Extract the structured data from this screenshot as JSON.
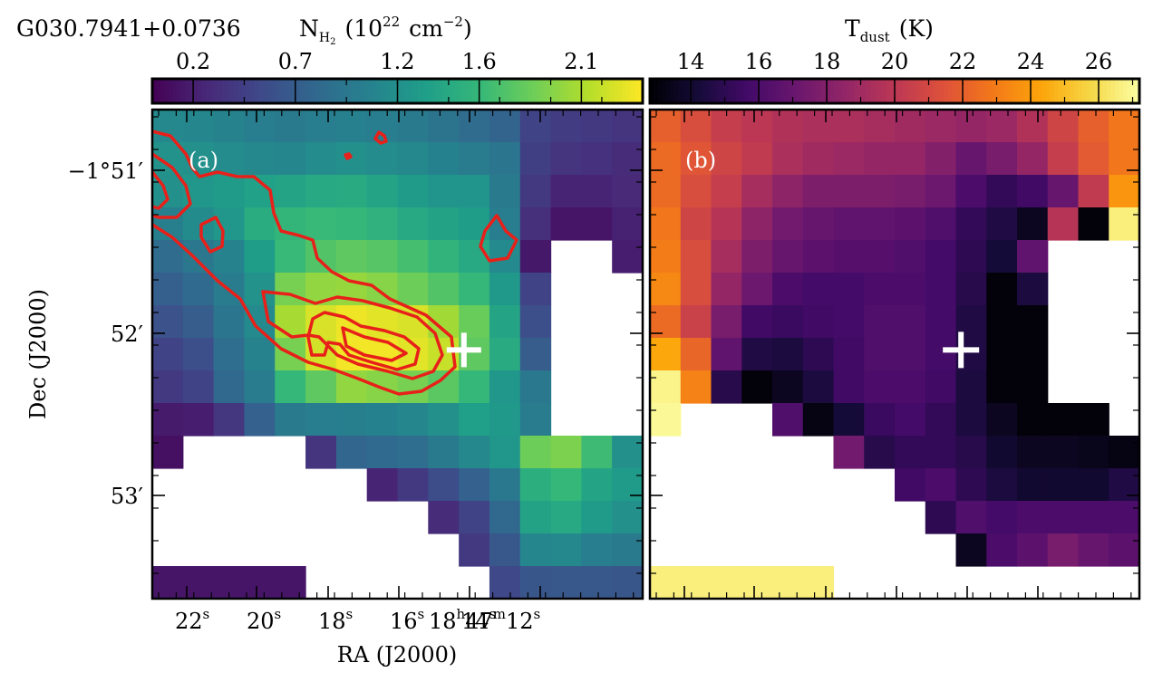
{
  "figure": {
    "source_label": "G030.7941+0.0736",
    "colorbar_left_title_main": "N",
    "colorbar_left_title_sub": "H",
    "colorbar_left_title_subsub": "2",
    "colorbar_left_title_unit": "(10",
    "colorbar_left_title_exp": "22",
    "colorbar_left_title_unit2": "cm",
    "colorbar_left_title_exp2": "−2",
    "colorbar_left_title_close": ")",
    "colorbar_right_title_main": "T",
    "colorbar_right_title_sub": "dust",
    "colorbar_right_title_unit": "(K)",
    "panel_a_label": "(a)",
    "panel_b_label": "(b)",
    "ylabel": "Dec (J2000)",
    "xlabel": "RA (J2000)",
    "y_ticks": [
      {
        "main": "−1°51′",
        "value": -1.85
      },
      {
        "main": "52′",
        "value": -1.8667
      },
      {
        "main": "53′",
        "value": -1.8833
      }
    ],
    "x_ticks": [
      {
        "sec": "22",
        "value": 22
      },
      {
        "sec": "20",
        "value": 20
      },
      {
        "sec": "18",
        "value": 18
      },
      {
        "sec": "16",
        "value": 16
      },
      {
        "sec": "14",
        "value": 14
      },
      {
        "sec": "12",
        "value": 12
      }
    ],
    "x_last_prefix_h": "18",
    "x_last_prefix_m": "47",
    "x_last_h": "h",
    "x_last_m": "m",
    "x_sec_suffix": "s"
  },
  "chart_data": [
    {
      "type": "heatmap",
      "panel": "a",
      "quantity": "N_H2",
      "colormap": "viridis",
      "colorbar": {
        "ticks": [
          0.2,
          0.7,
          1.2,
          1.6,
          2.1
        ],
        "tick_labels": [
          "0.2",
          "0.7",
          "1.2",
          "1.6",
          "2.1"
        ],
        "range": [
          0.0,
          2.4
        ]
      },
      "x_range_ra_sec": [
        22.6,
        11.9
      ],
      "y_range_dec_deg": [
        -1.8917,
        -1.8455
      ],
      "marker": {
        "symbol": "+",
        "color": "#ffffff",
        "ra_sec": 15.8,
        "dec_deg": -1.8682
      },
      "contour_color": "#e8201a",
      "grid_values": [
        [
          1.12,
          1.1,
          1.08,
          1.02,
          0.98,
          1.02,
          1.05,
          1.02,
          0.98,
          0.92,
          0.84,
          0.76,
          0.48,
          0.42,
          0.4,
          0.36
        ],
        [
          1.22,
          1.2,
          1.16,
          1.12,
          1.1,
          1.16,
          1.2,
          1.16,
          1.12,
          1.06,
          1.0,
          0.94,
          0.45,
          0.36,
          0.34,
          0.3
        ],
        [
          1.2,
          1.26,
          1.3,
          1.36,
          1.4,
          1.44,
          1.46,
          1.4,
          1.3,
          1.24,
          1.24,
          0.98,
          0.4,
          0.24,
          0.24,
          0.28
        ],
        [
          1.04,
          1.15,
          1.26,
          1.48,
          1.58,
          1.62,
          1.6,
          1.54,
          1.44,
          1.38,
          1.32,
          1.02,
          0.32,
          0.14,
          0.14,
          0.22
        ],
        [
          0.84,
          0.95,
          1.08,
          1.32,
          1.62,
          1.74,
          1.8,
          1.76,
          1.68,
          1.56,
          1.44,
          1.14,
          0.16,
          null,
          null,
          0.2
        ],
        [
          0.72,
          0.82,
          1.0,
          1.22,
          1.9,
          2.0,
          2.02,
          1.96,
          1.86,
          1.74,
          1.6,
          1.28,
          0.48,
          null,
          null,
          null
        ],
        [
          0.6,
          0.7,
          0.94,
          1.14,
          2.08,
          2.26,
          2.34,
          2.3,
          2.26,
          2.06,
          1.84,
          1.4,
          0.58,
          null,
          null,
          null
        ],
        [
          0.48,
          0.58,
          0.86,
          1.08,
          1.9,
          2.24,
          2.36,
          2.36,
          2.3,
          2.2,
          1.8,
          1.46,
          0.7,
          null,
          null,
          null
        ],
        [
          0.4,
          0.48,
          0.8,
          1.0,
          1.6,
          1.8,
          2.0,
          1.96,
          1.9,
          1.78,
          1.6,
          1.26,
          0.96,
          null,
          null,
          null
        ],
        [
          0.18,
          0.2,
          0.38,
          0.74,
          0.98,
          1.02,
          1.04,
          1.06,
          1.1,
          1.2,
          1.34,
          1.28,
          1.0,
          null,
          null,
          null
        ],
        [
          0.1,
          null,
          null,
          null,
          null,
          0.36,
          0.78,
          0.82,
          0.86,
          0.98,
          1.12,
          1.26,
          1.86,
          1.92,
          1.64,
          1.2
        ],
        [
          null,
          null,
          null,
          null,
          null,
          null,
          null,
          0.24,
          0.4,
          0.56,
          0.74,
          0.96,
          1.5,
          1.6,
          1.4,
          1.3
        ],
        [
          null,
          null,
          null,
          null,
          null,
          null,
          null,
          null,
          null,
          0.3,
          0.48,
          0.8,
          1.38,
          1.44,
          1.3,
          1.2
        ],
        [
          null,
          null,
          null,
          null,
          null,
          null,
          null,
          null,
          null,
          null,
          0.4,
          0.66,
          1.1,
          1.12,
          1.02,
          0.98
        ],
        [
          0.14,
          0.14,
          0.14,
          0.14,
          0.14,
          null,
          null,
          null,
          null,
          null,
          null,
          0.52,
          0.64,
          0.66,
          0.66,
          0.64
        ]
      ]
    },
    {
      "type": "heatmap",
      "panel": "b",
      "quantity": "T_dust",
      "colormap": "inferno",
      "colorbar": {
        "ticks": [
          14,
          16,
          18,
          20,
          22,
          24,
          26
        ],
        "tick_labels": [
          "14",
          "16",
          "18",
          "20",
          "22",
          "24",
          "26"
        ],
        "range": [
          12.8,
          27.2
        ]
      },
      "marker": {
        "symbol": "+",
        "color": "#ffffff",
        "ra_sec": 15.8,
        "dec_deg": -1.8682
      },
      "grid_values": [
        [
          22.0,
          21.2,
          20.4,
          20.0,
          19.6,
          19.4,
          19.4,
          19.2,
          19.0,
          18.8,
          18.6,
          18.8,
          19.6,
          20.8,
          22.0,
          22.8
        ],
        [
          22.4,
          21.6,
          20.8,
          20.2,
          19.4,
          19.0,
          18.8,
          18.6,
          18.6,
          18.0,
          17.0,
          17.6,
          18.6,
          20.4,
          21.8,
          22.8
        ],
        [
          22.4,
          21.2,
          20.4,
          19.2,
          18.4,
          17.8,
          17.8,
          17.8,
          17.6,
          17.2,
          16.0,
          15.2,
          15.6,
          17.0,
          20.2,
          23.8
        ],
        [
          22.8,
          20.8,
          19.8,
          18.4,
          17.4,
          17.0,
          16.8,
          16.8,
          16.6,
          16.2,
          15.2,
          14.6,
          13.6,
          19.8,
          13.0,
          26.6
        ],
        [
          23.0,
          21.2,
          19.2,
          17.8,
          17.0,
          16.6,
          16.4,
          16.4,
          16.2,
          15.8,
          15.0,
          14.2,
          16.8,
          null,
          null,
          null
        ],
        [
          23.4,
          21.2,
          18.6,
          17.2,
          16.0,
          15.8,
          15.8,
          16.0,
          16.0,
          15.8,
          14.8,
          13.0,
          14.4,
          null,
          null,
          null
        ],
        [
          22.4,
          20.6,
          17.6,
          15.6,
          15.4,
          15.6,
          15.8,
          16.2,
          16.2,
          15.8,
          14.6,
          13.0,
          13.0,
          null,
          null,
          null
        ],
        [
          24.4,
          22.2,
          16.8,
          14.6,
          14.4,
          15.0,
          15.6,
          16.2,
          16.2,
          15.8,
          14.6,
          13.0,
          13.0,
          null,
          null,
          null
        ],
        [
          26.8,
          23.2,
          14.8,
          13.0,
          13.6,
          14.4,
          15.6,
          16.0,
          16.0,
          15.6,
          14.4,
          13.0,
          13.0,
          null,
          null,
          null
        ],
        [
          27.0,
          null,
          null,
          null,
          16.2,
          13.2,
          14.2,
          15.4,
          15.8,
          15.2,
          14.4,
          13.6,
          13.0,
          13.0,
          13.0,
          null
        ],
        [
          null,
          null,
          null,
          null,
          null,
          null,
          17.4,
          14.8,
          15.2,
          15.2,
          14.8,
          14.0,
          13.6,
          13.6,
          13.4,
          13.2
        ],
        [
          null,
          null,
          null,
          null,
          null,
          null,
          null,
          null,
          15.6,
          16.0,
          15.0,
          14.4,
          14.0,
          14.0,
          14.0,
          14.6
        ],
        [
          null,
          null,
          null,
          null,
          null,
          null,
          null,
          null,
          null,
          15.0,
          16.2,
          15.8,
          16.0,
          16.0,
          16.0,
          16.0
        ],
        [
          null,
          null,
          null,
          null,
          null,
          null,
          null,
          null,
          null,
          null,
          13.6,
          16.0,
          16.6,
          17.6,
          17.0,
          16.6
        ],
        [
          26.6,
          26.6,
          26.6,
          26.6,
          26.6,
          26.6,
          null,
          null,
          null,
          null,
          null,
          null,
          null,
          null,
          null,
          null
        ]
      ]
    }
  ]
}
